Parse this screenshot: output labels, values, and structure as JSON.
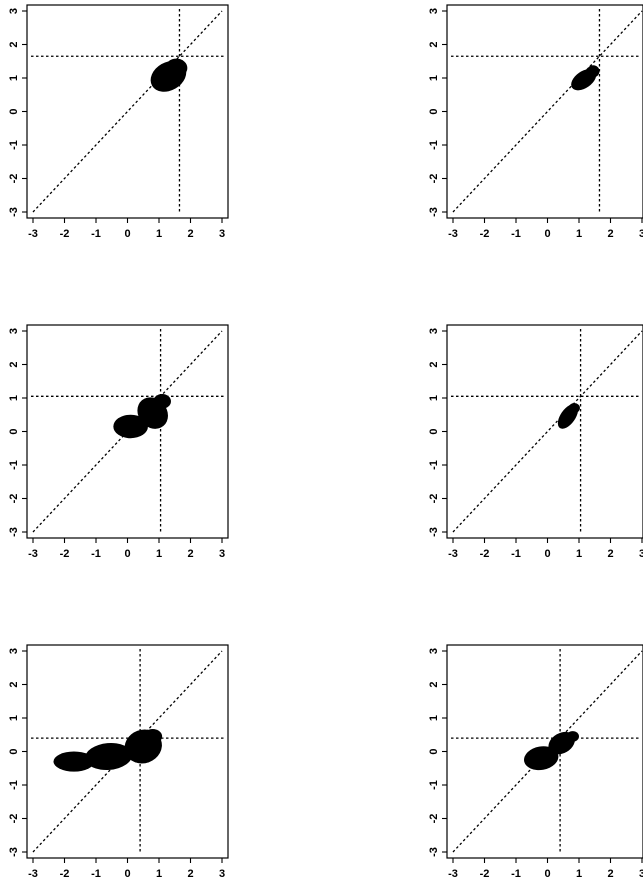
{
  "chart_data": [
    {
      "type": "scatter",
      "xlim": [
        -3,
        3
      ],
      "ylim": [
        -3,
        3
      ],
      "xticks": [
        "-3",
        "-2",
        "-1",
        "0",
        "1",
        "2",
        "3"
      ],
      "yticks": [
        "-3",
        "-2",
        "-1",
        "0",
        "1",
        "2",
        "3"
      ],
      "reference_value": 1.65,
      "diagonal": true,
      "clusters": [
        {
          "cx": 1.3,
          "cy": 1.05,
          "rx": 0.6,
          "ry": 0.42,
          "rot": 30
        },
        {
          "cx": 1.55,
          "cy": 1.3,
          "rx": 0.35,
          "ry": 0.28,
          "rot": 0
        }
      ]
    },
    {
      "type": "scatter",
      "xlim": [
        -3,
        3
      ],
      "ylim": [
        -3,
        3
      ],
      "xticks": [
        "-3",
        "-2",
        "-1",
        "0",
        "1",
        "2",
        "3"
      ],
      "yticks": [
        "-3",
        "-2",
        "-1",
        "0",
        "1",
        "2",
        "3"
      ],
      "reference_value": 1.65,
      "diagonal": true,
      "clusters": [
        {
          "cx": 1.15,
          "cy": 0.95,
          "rx": 0.45,
          "ry": 0.25,
          "rot": 35
        },
        {
          "cx": 1.45,
          "cy": 1.2,
          "rx": 0.2,
          "ry": 0.18,
          "rot": 0
        }
      ]
    },
    {
      "type": "scatter",
      "xlim": [
        -3,
        3
      ],
      "ylim": [
        -3,
        3
      ],
      "xticks": [
        "-3",
        "-2",
        "-1",
        "0",
        "1",
        "2",
        "3"
      ],
      "yticks": [
        "-3",
        "-2",
        "-1",
        "0",
        "1",
        "2",
        "3"
      ],
      "reference_value": 1.05,
      "diagonal": true,
      "clusters": [
        {
          "cx": 0.1,
          "cy": 0.15,
          "rx": 0.55,
          "ry": 0.35,
          "rot": 0
        },
        {
          "cx": 0.8,
          "cy": 0.55,
          "rx": 0.45,
          "ry": 0.5,
          "rot": 40
        },
        {
          "cx": 1.1,
          "cy": 0.9,
          "rx": 0.28,
          "ry": 0.22,
          "rot": 0
        }
      ]
    },
    {
      "type": "scatter",
      "xlim": [
        -3,
        3
      ],
      "ylim": [
        -3,
        3
      ],
      "xticks": [
        "-3",
        "-2",
        "-1",
        "0",
        "1",
        "2",
        "3"
      ],
      "yticks": [
        "-3",
        "-2",
        "-1",
        "0",
        "1",
        "2",
        "3"
      ],
      "reference_value": 1.05,
      "diagonal": true,
      "clusters": [
        {
          "cx": 0.65,
          "cy": 0.45,
          "rx": 0.45,
          "ry": 0.22,
          "rot": 55
        },
        {
          "cx": 0.85,
          "cy": 0.7,
          "rx": 0.18,
          "ry": 0.15,
          "rot": 0
        }
      ]
    },
    {
      "type": "scatter",
      "xlim": [
        -3,
        3
      ],
      "ylim": [
        -3,
        3
      ],
      "xticks": [
        "-3",
        "-2",
        "-1",
        "0",
        "1",
        "2",
        "3"
      ],
      "yticks": [
        "-3",
        "-2",
        "-1",
        "0",
        "1",
        "2",
        "3"
      ],
      "reference_value": 0.4,
      "diagonal": true,
      "clusters": [
        {
          "cx": -1.7,
          "cy": -0.3,
          "rx": 0.65,
          "ry": 0.3,
          "rot": 0
        },
        {
          "cx": -0.6,
          "cy": -0.15,
          "rx": 0.75,
          "ry": 0.4,
          "rot": 5
        },
        {
          "cx": 0.5,
          "cy": 0.15,
          "rx": 0.6,
          "ry": 0.5,
          "rot": 20
        },
        {
          "cx": 0.8,
          "cy": 0.45,
          "rx": 0.3,
          "ry": 0.22,
          "rot": 0
        }
      ]
    },
    {
      "type": "scatter",
      "xlim": [
        -3,
        3
      ],
      "ylim": [
        -3,
        3
      ],
      "xticks": [
        "-3",
        "-2",
        "-1",
        "0",
        "1",
        "2",
        "3"
      ],
      "yticks": [
        "-3",
        "-2",
        "-1",
        "0",
        "1",
        "2",
        "3"
      ],
      "reference_value": 0.4,
      "diagonal": true,
      "clusters": [
        {
          "cx": -0.2,
          "cy": -0.2,
          "rx": 0.55,
          "ry": 0.35,
          "rot": 10
        },
        {
          "cx": 0.45,
          "cy": 0.25,
          "rx": 0.45,
          "ry": 0.3,
          "rot": 30
        },
        {
          "cx": 0.8,
          "cy": 0.45,
          "rx": 0.2,
          "ry": 0.16,
          "rot": 0
        }
      ]
    }
  ]
}
